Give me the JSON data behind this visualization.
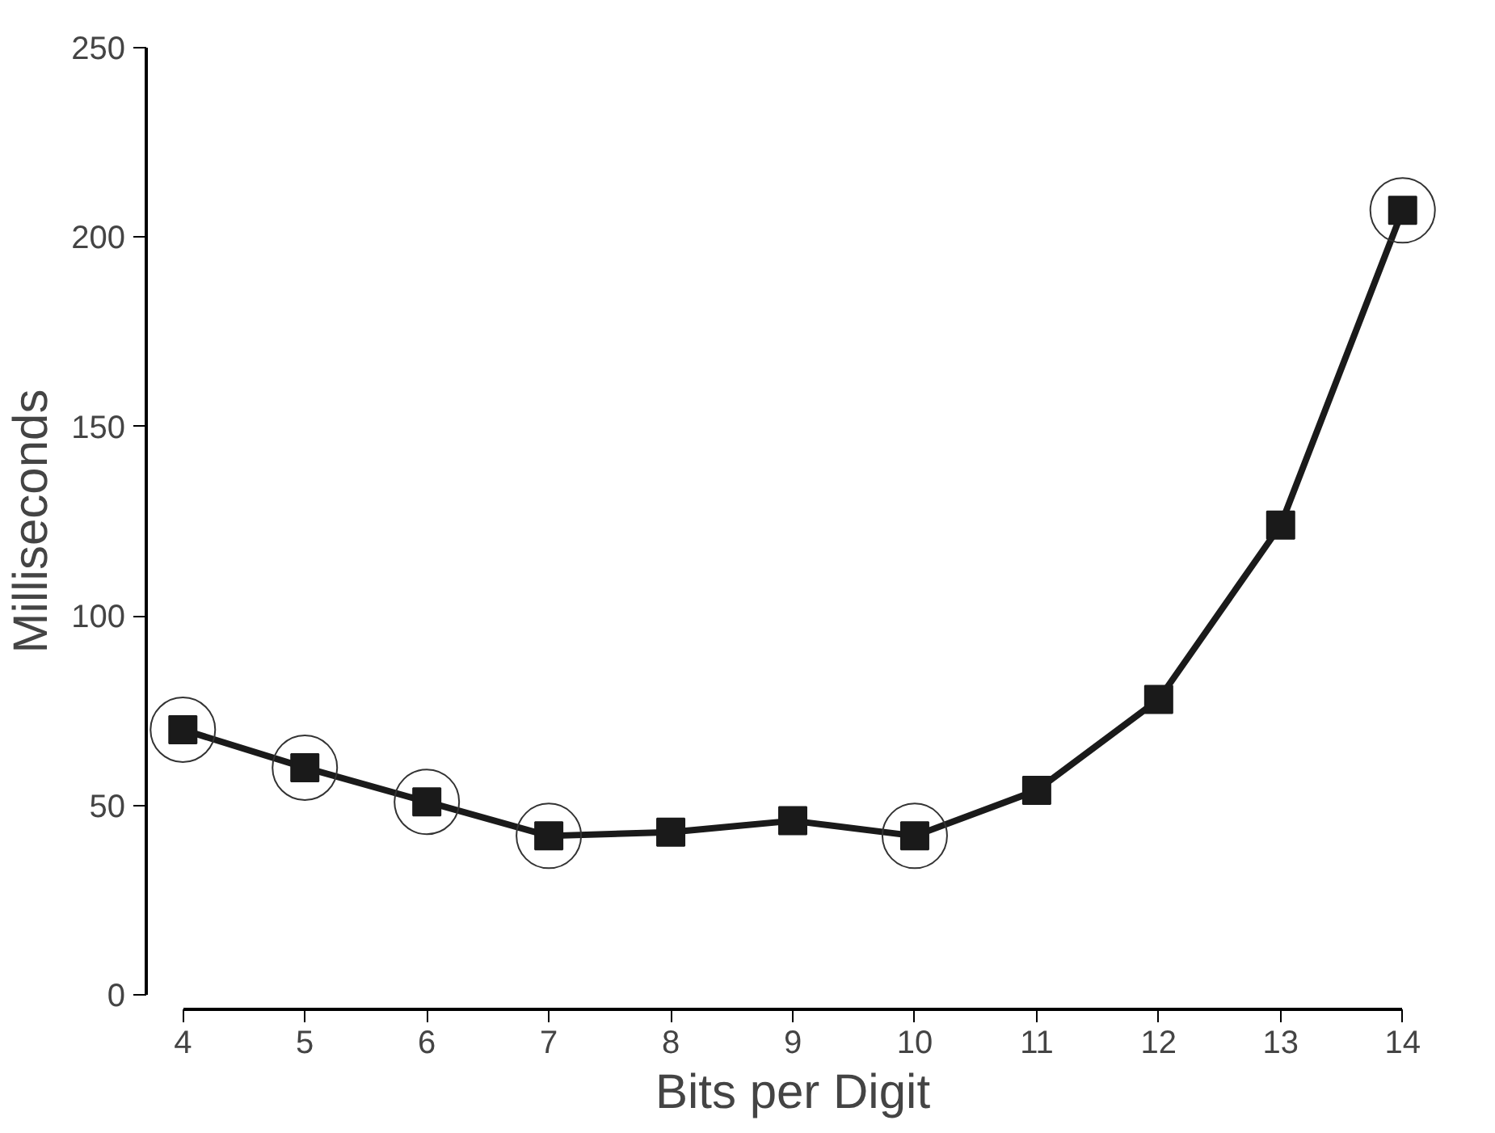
{
  "chart_data": {
    "type": "line",
    "xlabel": "Bits per Digit",
    "ylabel": "Milliseconds",
    "x": [
      4,
      5,
      6,
      7,
      8,
      9,
      10,
      11,
      12,
      13,
      14
    ],
    "series": [
      {
        "color": "#1a1a1a",
        "values": [
          70,
          60,
          51,
          42,
          43,
          46,
          42,
          54,
          78,
          124,
          207
        ],
        "marker": "square",
        "line_style": "solid"
      },
      {
        "type": "scatter",
        "color": "#333333",
        "marker": "circle",
        "x": [
          4,
          5,
          6,
          7,
          10,
          14
        ],
        "values": [
          70,
          60,
          51,
          42,
          42,
          207
        ]
      }
    ],
    "xlim": [
      4,
      14
    ],
    "ylim": [
      0,
      250
    ],
    "xticks": [
      4,
      5,
      6,
      7,
      8,
      9,
      10,
      11,
      12,
      13,
      14
    ],
    "yticks": [
      0,
      50,
      100,
      150,
      200,
      250
    ],
    "grid": false
  }
}
